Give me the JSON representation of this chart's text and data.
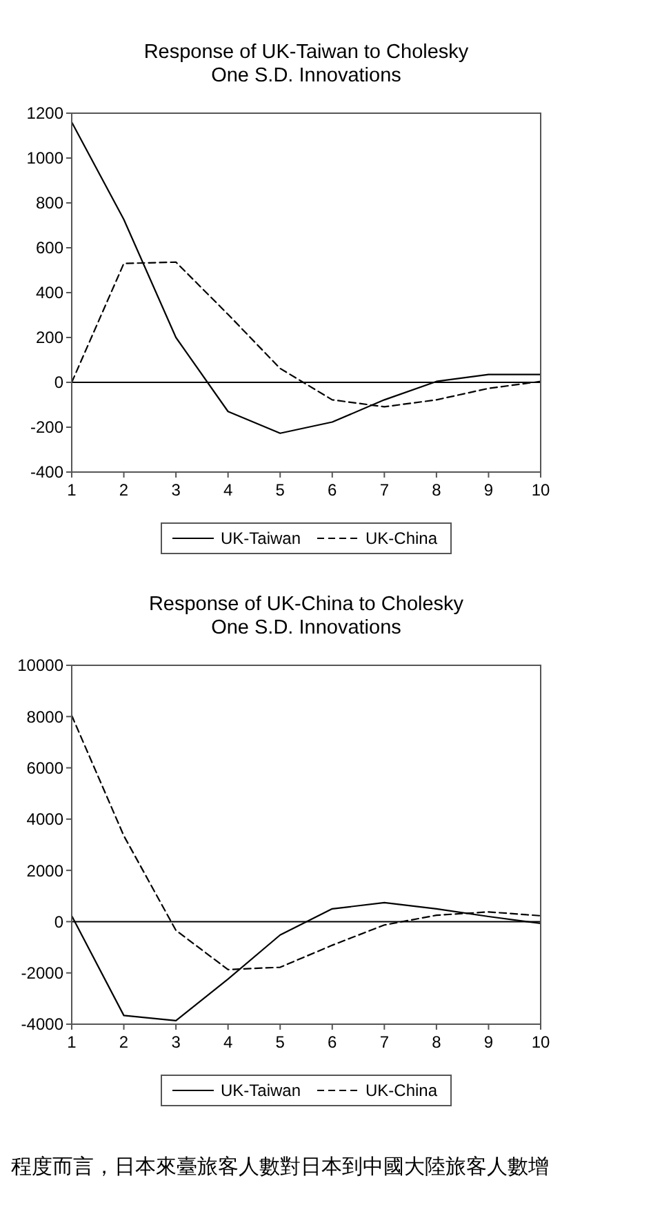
{
  "chart_data": [
    {
      "type": "line",
      "title": "Response of UK-Taiwan to Cholesky\nOne S.D. Innovations",
      "x": [
        1,
        2,
        3,
        4,
        5,
        6,
        7,
        8,
        9,
        10
      ],
      "xlim": [
        1,
        10
      ],
      "xticks": [
        1,
        2,
        3,
        4,
        5,
        6,
        7,
        8,
        9,
        10
      ],
      "ylim": [
        -400,
        1200
      ],
      "yticks": [
        -400,
        -200,
        0,
        200,
        400,
        600,
        800,
        1000,
        1200
      ],
      "grid": false,
      "legend": "bottom",
      "series": [
        {
          "name": "UK-Taiwan",
          "color": "#000000",
          "line_style": "solid",
          "values": [
            1160,
            726,
            200,
            -130,
            -227,
            -177,
            -78,
            4,
            35,
            35
          ]
        },
        {
          "name": "UK-China",
          "color": "#000000",
          "line_style": "dashed",
          "values": [
            0,
            530,
            536,
            303,
            62,
            -78,
            -109,
            -78,
            -27,
            4
          ]
        }
      ],
      "ref_lines": [
        {
          "axis": "y",
          "value": 0,
          "color": "#000000"
        }
      ]
    },
    {
      "type": "line",
      "title": "Response of UK-China to Cholesky\nOne S.D. Innovations",
      "x": [
        1,
        2,
        3,
        4,
        5,
        6,
        7,
        8,
        9,
        10
      ],
      "xlim": [
        1,
        10
      ],
      "xticks": [
        1,
        2,
        3,
        4,
        5,
        6,
        7,
        8,
        9,
        10
      ],
      "ylim": [
        -4000,
        10000
      ],
      "yticks": [
        -4000,
        -2000,
        0,
        2000,
        4000,
        6000,
        8000,
        10000
      ],
      "grid": false,
      "legend": "bottom",
      "series": [
        {
          "name": "UK-Taiwan",
          "color": "#000000",
          "line_style": "solid",
          "values": [
            230,
            -3660,
            -3860,
            -2240,
            -520,
            500,
            740,
            500,
            200,
            -70
          ]
        },
        {
          "name": "UK-China",
          "color": "#000000",
          "line_style": "dashed",
          "values": [
            8040,
            3350,
            -340,
            -1870,
            -1780,
            -920,
            -130,
            250,
            380,
            230
          ]
        }
      ],
      "ref_lines": [
        {
          "axis": "y",
          "value": 0,
          "color": "#000000"
        }
      ],
      "annotations": [
        "程度而言，日本來臺旅客人數對日本到中國大陸旅客人數增"
      ]
    }
  ]
}
